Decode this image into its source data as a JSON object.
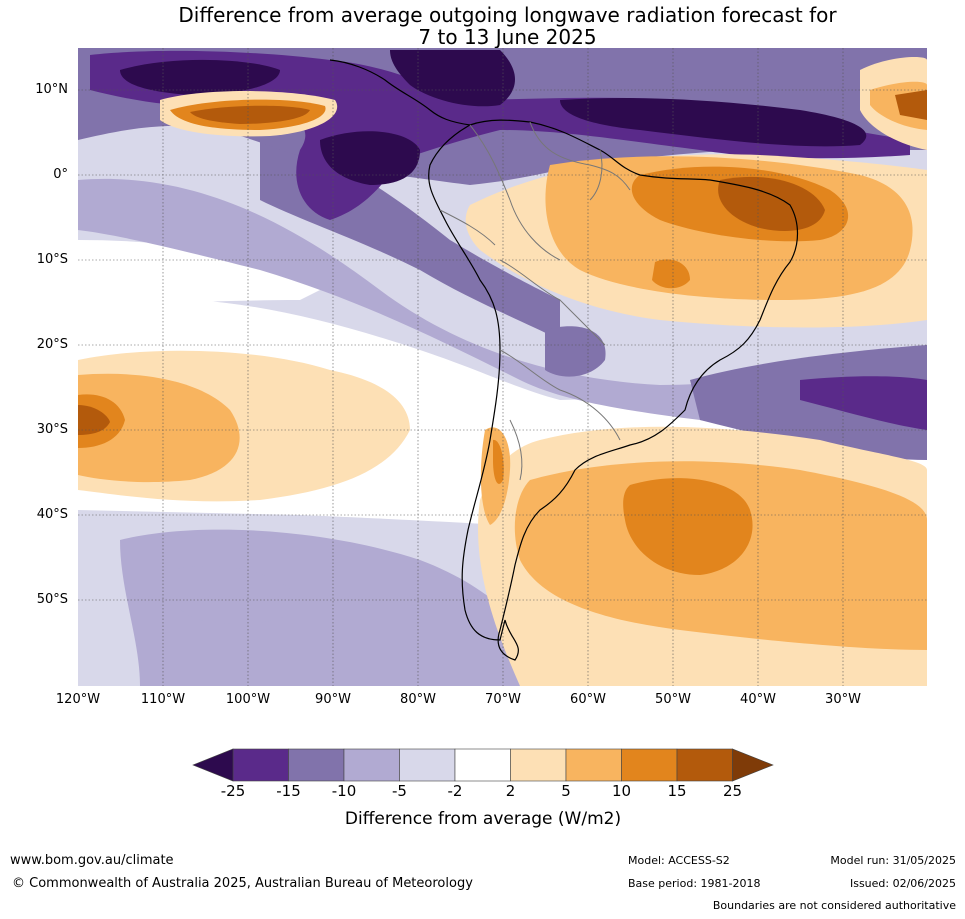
{
  "title": {
    "line1": "Difference from average outgoing longwave radiation forecast for",
    "line2": "7 to 13 June 2025"
  },
  "map": {
    "lat_labels": [
      "10°N",
      "0°",
      "10°S",
      "20°S",
      "30°S",
      "40°S",
      "50°S"
    ],
    "lon_labels": [
      "120°W",
      "110°W",
      "100°W",
      "90°W",
      "80°W",
      "70°W",
      "60°W",
      "50°W",
      "40°W",
      "30°W"
    ]
  },
  "colorbar": {
    "ticks": [
      "-25",
      "-15",
      "-10",
      "-5",
      "-2",
      "2",
      "5",
      "10",
      "15",
      "25"
    ],
    "title": "Difference from average (W/m2)",
    "colors": {
      "below_-25": "#2d0a4e",
      "-25_-15": "#5a2a8a",
      "-15_-10": "#8173ab",
      "-10_-5": "#b1aad2",
      "-5_-2": "#d8d8ea",
      "-2_2": "#ffffff",
      "2_5": "#fde0b5",
      "5_10": "#f8b45f",
      "10_15": "#e2851d",
      "15_25": "#b35a0c",
      "above_25": "#7f3b08"
    }
  },
  "footer": {
    "website": "www.bom.gov.au/climate",
    "copyright": "© Commonwealth of Australia 2025, Australian Bureau of Meteorology",
    "model": "Model: ACCESS-S2",
    "base_period": "Base period: 1981-2018",
    "model_run": "Model run: 31/05/2025",
    "issued": "Issued: 02/06/2025",
    "disclaimer": "Boundaries are not considered authoritative"
  }
}
